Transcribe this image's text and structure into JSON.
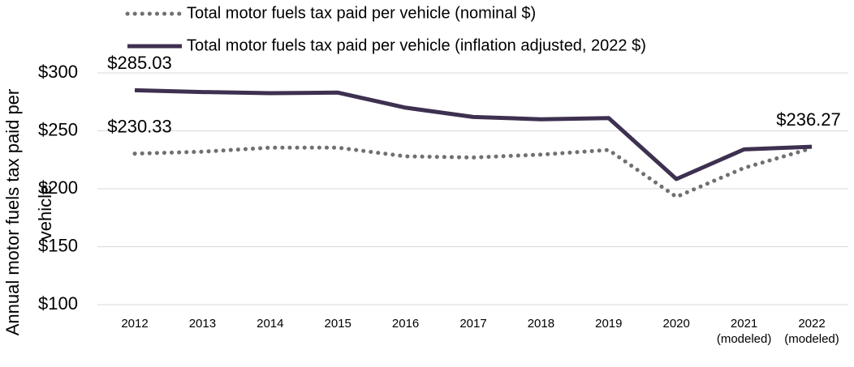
{
  "chart_data": {
    "type": "line",
    "y_label": "Annual motor fuels tax paid per vehicle",
    "categories": [
      "2012",
      "2013",
      "2014",
      "2015",
      "2016",
      "2017",
      "2018",
      "2019",
      "2020",
      "2021 (modeled)",
      "2022 (modeled)"
    ],
    "series": [
      {
        "name": "Total motor fuels tax paid per vehicle (nominal $)",
        "color": "#707070",
        "style": "dotted",
        "values": [
          230.33,
          232,
          235.5,
          235.5,
          228,
          227,
          229.5,
          233.5,
          193,
          218,
          235
        ],
        "value_labels": [
          "$230.33",
          null,
          null,
          null,
          null,
          null,
          null,
          null,
          null,
          null,
          null
        ]
      },
      {
        "name": "Total motor fuels tax paid per vehicle (inflation adjusted, 2022 $)",
        "color": "#3d3050",
        "style": "solid",
        "values": [
          285.03,
          283.5,
          282.5,
          283,
          270,
          262,
          260,
          261,
          208.4,
          234,
          236.27
        ],
        "value_labels": [
          "$285.03",
          null,
          null,
          null,
          null,
          null,
          null,
          null,
          null,
          null,
          "$236.27"
        ]
      }
    ],
    "ylim": [
      100,
      300
    ],
    "yticks": [
      {
        "value": 100,
        "label": "$100"
      },
      {
        "value": 150,
        "label": "$150"
      },
      {
        "value": 200,
        "label": "$200"
      },
      {
        "value": 250,
        "label": "$250"
      },
      {
        "value": 300,
        "label": "$300"
      }
    ],
    "grid": true,
    "legend": "top"
  }
}
